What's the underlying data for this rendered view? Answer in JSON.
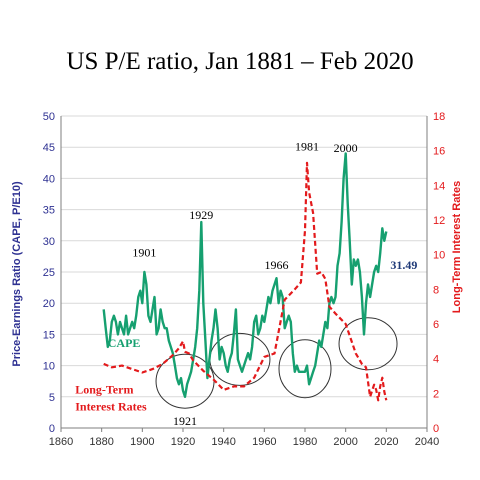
{
  "chart_data": {
    "type": "line",
    "title": "US P/E ratio, Jan 1881 – Feb 2020",
    "ylabel": "Price-Earnings Ratio (CAPE, P/E10)",
    "y2label": "Long-Term Interest Rates",
    "xlim": [
      1860,
      2040
    ],
    "ylim": [
      0,
      50
    ],
    "y2lim": [
      0,
      18
    ],
    "x_ticks": [
      "1860",
      "1880",
      "1900",
      "1920",
      "1940",
      "1960",
      "1980",
      "2000",
      "2020",
      "2040"
    ],
    "y_ticks": [
      "0",
      "5",
      "10",
      "15",
      "20",
      "25",
      "30",
      "35",
      "40",
      "45",
      "50"
    ],
    "y2_ticks": [
      "0",
      "2",
      "4",
      "6",
      "8",
      "10",
      "12",
      "14",
      "16",
      "18"
    ],
    "grid": true,
    "series": [
      {
        "name": "CAPE",
        "axis": "left",
        "color": "#16a070",
        "x": [
          1881,
          1882,
          1883,
          1884,
          1885,
          1886,
          1887,
          1888,
          1889,
          1890,
          1891,
          1892,
          1893,
          1894,
          1895,
          1896,
          1897,
          1898,
          1899,
          1900,
          1901,
          1902,
          1903,
          1904,
          1905,
          1906,
          1907,
          1908,
          1909,
          1910,
          1911,
          1912,
          1913,
          1914,
          1915,
          1916,
          1917,
          1918,
          1919,
          1920,
          1921,
          1922,
          1923,
          1924,
          1925,
          1926,
          1927,
          1928,
          1929,
          1930,
          1931,
          1932,
          1933,
          1934,
          1935,
          1936,
          1937,
          1938,
          1939,
          1940,
          1941,
          1942,
          1943,
          1944,
          1945,
          1946,
          1947,
          1948,
          1949,
          1950,
          1951,
          1952,
          1953,
          1954,
          1955,
          1956,
          1957,
          1958,
          1959,
          1960,
          1961,
          1962,
          1963,
          1964,
          1965,
          1966,
          1967,
          1968,
          1969,
          1970,
          1971,
          1972,
          1973,
          1974,
          1975,
          1976,
          1977,
          1978,
          1979,
          1980,
          1981,
          1982,
          1983,
          1984,
          1985,
          1986,
          1987,
          1988,
          1989,
          1990,
          1991,
          1992,
          1993,
          1994,
          1995,
          1996,
          1997,
          1998,
          1999,
          2000,
          2001,
          2002,
          2003,
          2004,
          2005,
          2006,
          2007,
          2008,
          2009,
          2010,
          2011,
          2012,
          2013,
          2014,
          2015,
          2016,
          2017,
          2018,
          2019,
          2020
        ],
        "values": [
          19,
          16,
          13,
          14,
          17,
          18,
          17,
          15,
          17,
          16,
          15,
          18,
          15,
          16,
          17,
          16,
          18,
          21,
          22,
          20,
          25,
          23,
          18,
          17,
          19,
          21,
          15,
          16,
          19,
          17,
          16,
          16,
          14,
          13,
          12,
          10,
          8,
          7,
          8,
          6,
          5,
          7,
          8,
          9,
          11,
          13,
          16,
          22,
          33,
          20,
          14,
          8,
          11,
          14,
          16,
          19,
          16,
          11,
          13,
          12,
          10,
          9,
          11,
          12,
          15,
          19,
          11,
          10,
          9,
          10,
          11,
          12,
          11,
          13,
          17,
          18,
          15,
          16,
          18,
          17,
          19,
          21,
          20,
          22,
          23,
          24,
          20,
          22,
          21,
          16,
          17,
          18,
          17,
          12,
          9,
          10,
          9,
          9,
          9,
          9,
          10,
          7,
          8,
          9,
          10,
          12,
          14,
          13,
          15,
          17,
          16,
          20,
          21,
          20,
          21,
          26,
          28,
          33,
          40,
          44,
          36,
          30,
          23,
          27,
          26,
          27,
          25,
          21,
          15,
          20,
          23,
          21,
          23,
          25,
          26,
          25,
          28,
          32,
          30,
          31.49
        ]
      },
      {
        "name": "Long-Term Interest Rates",
        "axis": "right",
        "color": "#e31a1c",
        "x": [
          1881,
          1885,
          1890,
          1895,
          1900,
          1905,
          1910,
          1915,
          1918,
          1920,
          1921,
          1923,
          1925,
          1930,
          1935,
          1940,
          1945,
          1950,
          1955,
          1960,
          1965,
          1970,
          1975,
          1978,
          1980,
          1981,
          1982,
          1984,
          1986,
          1988,
          1990,
          1992,
          1995,
          2000,
          2005,
          2008,
          2010,
          2012,
          2014,
          2015,
          2016,
          2017,
          2018,
          2019,
          2020
        ],
        "values": [
          3.7,
          3.5,
          3.6,
          3.4,
          3.2,
          3.4,
          3.7,
          4.2,
          4.6,
          5.0,
          4.4,
          4.3,
          3.9,
          3.3,
          2.8,
          2.2,
          2.4,
          2.4,
          2.9,
          4.1,
          4.3,
          7.4,
          8.0,
          8.4,
          11.4,
          15.3,
          13.6,
          12.4,
          8.9,
          9.0,
          8.6,
          7.0,
          6.6,
          6.0,
          4.3,
          3.7,
          3.5,
          1.8,
          2.5,
          2.2,
          1.6,
          2.4,
          2.9,
          2.1,
          1.6
        ]
      }
    ],
    "annotations": [
      "1901",
      "1921",
      "1929",
      "1966",
      "1981",
      "2000"
    ],
    "end_label": "31.49",
    "legend_cape": "CAPE",
    "legend_rates_line1": "Long-Term",
    "legend_rates_line2": "Interest Rates",
    "highlight_circles_years": [
      1921,
      1948,
      1980,
      2011
    ]
  }
}
